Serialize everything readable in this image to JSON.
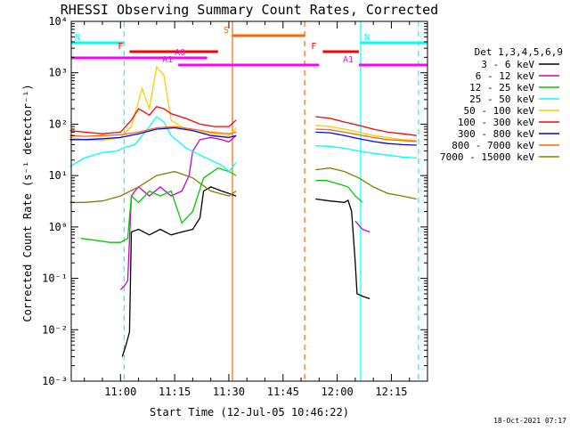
{
  "chart_data": {
    "type": "line",
    "title": "RHESSI Observing Summary Count Rates, Corrected",
    "xlabel": "Start Time (12-Jul-05 10:46:22)",
    "ylabel": "Corrected Count Rate (s⁻¹ detector⁻¹)",
    "y_scale": "log",
    "ylim": [
      0.001,
      10000
    ],
    "xlim": [
      "10:46:22",
      "12:25:00"
    ],
    "x_ticks": [
      "11:00",
      "11:15",
      "11:30",
      "11:45",
      "12:00",
      "12:15"
    ],
    "y_ticks": [
      "10⁻³",
      "10⁻²",
      "10⁻¹",
      "10⁰",
      "10¹",
      "10²",
      "10³",
      "10⁴"
    ],
    "legend_title": "Det 1,3,4,5,6,9",
    "legend_position": "right",
    "series": [
      {
        "name": "3 - 6 keV",
        "color": "#000000",
        "x": [
          "11:00:30",
          "11:01:30",
          "11:02:30",
          "11:03:00",
          "11:05",
          "11:08",
          "11:11",
          "11:14",
          "11:17",
          "11:20",
          "11:22",
          "11:23",
          "11:25",
          "11:28",
          "11:30",
          "11:32",
          null,
          "11:54",
          "11:58",
          "12:02",
          "12:03",
          "12:04",
          "12:05",
          "12:05:30",
          "12:07",
          "12:09"
        ],
        "values": [
          0.003,
          0.005,
          0.009,
          0.8,
          0.9,
          0.7,
          0.9,
          0.7,
          0.8,
          0.9,
          1.5,
          5,
          6,
          5,
          4.5,
          4,
          null,
          3.5,
          3.2,
          3.0,
          3.3,
          2.0,
          0.2,
          0.05,
          0.045,
          0.04
        ]
      },
      {
        "name": "6 - 12 keV",
        "color": "#cc00cc",
        "x": [
          "11:00",
          "11:01",
          "11:02",
          "11:03",
          "11:04",
          "11:05",
          "11:08",
          "11:11",
          "11:14",
          "11:17",
          "11:19",
          "11:20",
          "11:22",
          "11:25",
          "11:28",
          "11:30",
          "11:32",
          null,
          "12:05",
          "12:07",
          "12:09"
        ],
        "values": [
          0.06,
          0.07,
          0.09,
          4,
          5,
          6,
          4,
          6,
          4,
          5,
          10,
          30,
          50,
          55,
          50,
          45,
          60,
          null,
          1.3,
          0.9,
          0.8
        ]
      },
      {
        "name": "12 - 25 keV",
        "color": "#00cc00",
        "x": [
          "10:49",
          "10:53",
          "10:57",
          "11:00",
          "11:02",
          "11:03",
          "11:05",
          "11:08",
          "11:11",
          "11:14",
          "11:17",
          "11:20",
          "11:23",
          "11:27",
          "11:30",
          "11:32",
          null,
          "11:54",
          "11:57",
          "12:00",
          "12:03",
          "12:05",
          "12:07"
        ],
        "values": [
          0.6,
          0.55,
          0.5,
          0.5,
          0.6,
          4,
          3,
          5,
          4,
          5,
          1.2,
          2.0,
          9,
          14,
          12,
          10,
          null,
          8,
          8,
          7,
          6,
          4,
          3
        ]
      },
      {
        "name": "25 - 50 keV",
        "color": "#00ffff",
        "x": [
          "10:46",
          "10:50",
          "10:55",
          "10:59",
          "11:01",
          "11:04",
          "11:06",
          "11:08",
          "11:10",
          "11:12",
          "11:14",
          "11:18",
          "11:22",
          "11:25",
          "11:28",
          "11:30",
          "11:32",
          null,
          "11:54",
          "11:58",
          "12:02",
          "12:06",
          "12:10",
          "12:14",
          "12:18",
          "12:22"
        ],
        "values": [
          15,
          22,
          28,
          30,
          35,
          40,
          60,
          90,
          140,
          110,
          60,
          35,
          25,
          20,
          16,
          12,
          18,
          null,
          38,
          37,
          34,
          30,
          27,
          25,
          23,
          22
        ]
      },
      {
        "name": "50 - 100 keV",
        "color": "#ffcc00",
        "x": [
          "10:46",
          "10:50",
          "10:55",
          "11:00",
          "11:03",
          "11:06",
          "11:08",
          "11:10",
          "11:12",
          "11:14",
          "11:18",
          "11:22",
          "11:26",
          "11:30",
          "11:32",
          null,
          "11:54",
          "11:58",
          "12:02",
          "12:06",
          "12:10",
          "12:14",
          "12:18",
          "12:22"
        ],
        "values": [
          55,
          50,
          48,
          55,
          90,
          500,
          200,
          1300,
          900,
          120,
          80,
          70,
          65,
          60,
          85,
          null,
          95,
          90,
          80,
          70,
          60,
          55,
          50,
          48
        ]
      },
      {
        "name": "100 - 300 keV",
        "color": "#ff0000",
        "x": [
          "10:46",
          "10:50",
          "10:55",
          "11:00",
          "11:03",
          "11:05",
          "11:08",
          "11:10",
          "11:12",
          "11:14",
          "11:18",
          "11:22",
          "11:26",
          "11:30",
          "11:32",
          null,
          "11:54",
          "11:58",
          "12:02",
          "12:06",
          "12:10",
          "12:14",
          "12:18",
          "12:22"
        ],
        "values": [
          75,
          70,
          65,
          70,
          120,
          200,
          150,
          220,
          200,
          160,
          130,
          100,
          90,
          90,
          120,
          null,
          140,
          130,
          110,
          95,
          80,
          70,
          65,
          60
        ]
      },
      {
        "name": "300 - 800 keV",
        "color": "#0000ff",
        "x": [
          "10:46",
          "10:50",
          "10:55",
          "11:00",
          "11:05",
          "11:10",
          "11:15",
          "11:20",
          "11:25",
          "11:30",
          "11:32",
          null,
          "11:54",
          "11:58",
          "12:02",
          "12:06",
          "12:10",
          "12:14",
          "12:18",
          "12:22"
        ],
        "values": [
          50,
          50,
          52,
          55,
          65,
          80,
          85,
          75,
          60,
          55,
          60,
          null,
          70,
          68,
          60,
          52,
          46,
          42,
          40,
          39
        ]
      },
      {
        "name": "800 - 7000 keV",
        "color": "#ff6600",
        "x": [
          "10:46",
          "10:50",
          "10:55",
          "11:00",
          "11:05",
          "11:10",
          "11:15",
          "11:20",
          "11:25",
          "11:30",
          "11:32",
          null,
          "11:54",
          "11:58",
          "12:02",
          "12:06",
          "12:10",
          "12:14",
          "12:18",
          "12:22"
        ],
        "values": [
          60,
          58,
          60,
          62,
          70,
          85,
          90,
          80,
          70,
          65,
          70,
          null,
          80,
          78,
          70,
          62,
          55,
          50,
          48,
          46
        ]
      },
      {
        "name": "7000 - 15000 keV",
        "color": "#808000",
        "x": [
          "10:46",
          "10:50",
          "10:55",
          "11:00",
          "11:05",
          "11:10",
          "11:15",
          "11:20",
          "11:25",
          "11:30",
          "11:32",
          null,
          "11:54",
          "11:58",
          "12:02",
          "12:06",
          "12:10",
          "12:14",
          "12:18",
          "12:22"
        ],
        "values": [
          3,
          3,
          3.2,
          4,
          6,
          10,
          12,
          9,
          5,
          4,
          5,
          null,
          13,
          14,
          12,
          9,
          6,
          4.5,
          4,
          3.5
        ]
      }
    ],
    "attenuator_bars": [
      {
        "label": "N",
        "color": "#00ffff",
        "start": "10:46:22",
        "end": "11:01:00"
      },
      {
        "label": "N",
        "color": "#00ffff",
        "start": "12:06:30",
        "end": "12:25:00"
      },
      {
        "label": "F",
        "color": "#ff0000",
        "start": "11:02:30",
        "end": "11:27:00"
      },
      {
        "label": "F",
        "color": "#ff0000",
        "start": "11:56:00",
        "end": "12:06:00"
      },
      {
        "label": "AO",
        "color": "#ff00ff",
        "start": "10:46:22",
        "end": "11:24:00"
      },
      {
        "label": "A1",
        "color": "#ff00ff",
        "start": "11:16:00",
        "end": "11:55:00"
      },
      {
        "label": "A1",
        "color": "#ff00ff",
        "start": "12:06:00",
        "end": "12:25:00"
      },
      {
        "label": "S",
        "color": "#ff6600",
        "start": "11:31:00",
        "end": "11:51:00"
      }
    ],
    "vertical_markers": [
      {
        "time": "11:01:00",
        "color": "#00ffff",
        "style": "dashed"
      },
      {
        "time": "12:06:30",
        "color": "#00ffff",
        "style": "solid"
      },
      {
        "time": "12:22:30",
        "color": "#00ffff",
        "style": "dashed"
      },
      {
        "time": "11:31:00",
        "color": "#ff6600",
        "style": "solid"
      },
      {
        "time": "11:51:00",
        "color": "#ff6600",
        "style": "dashed"
      }
    ],
    "footer_date": "18-Oct-2021 07:17"
  }
}
